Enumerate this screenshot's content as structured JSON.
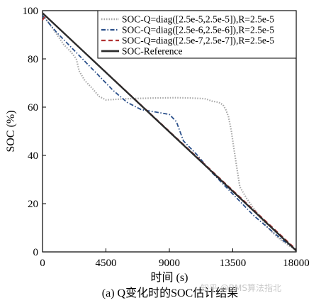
{
  "chart_data": {
    "type": "line",
    "title": "",
    "xlabel": "时间 (s)",
    "ylabel": "SOC (%)",
    "xlim": [
      0,
      18000
    ],
    "ylim": [
      0,
      100
    ],
    "xticks": [
      0,
      4500,
      9000,
      13500,
      18000
    ],
    "yticks": [
      0,
      20,
      40,
      60,
      80,
      100
    ],
    "legend_position": "top-right",
    "caption": "(a) Q变化时的SOC估计结果",
    "watermark": "知乎 @BMS算法指北",
    "series": [
      {
        "name": "SOC-Q=diag([2.5e-5,2.5e-5]),R=2.5e-5",
        "style": "dotted",
        "color": "#a6a6a6",
        "x": [
          0,
          300,
          800,
          1500,
          2000,
          2400,
          2600,
          3000,
          3500,
          4000,
          4500,
          6000,
          8000,
          9500,
          10500,
          11500,
          11800,
          12000,
          12500,
          12800,
          13000,
          13200,
          13400,
          13600,
          14000,
          14500,
          15000,
          15500,
          16000,
          16500,
          17000,
          17500,
          18000
        ],
        "y": [
          99,
          96,
          92,
          86,
          83,
          80,
          75,
          71,
          68,
          64.5,
          63,
          63.5,
          63.8,
          63.9,
          63.8,
          63.5,
          63,
          62.5,
          62,
          61,
          59,
          56,
          50,
          42,
          27,
          22,
          18,
          14,
          10,
          7,
          4.5,
          2.5,
          1
        ]
      },
      {
        "name": "SOC-Q=diag([2.5e-6,2.5e-6]),R=2.5e-5",
        "style": "dash-dot",
        "color": "#2a4f8a",
        "x": [
          0,
          1000,
          2000,
          3000,
          4000,
          5000,
          6000,
          7000,
          8000,
          9000,
          9500,
          10000,
          11000,
          12000,
          13000,
          14000,
          15000,
          16000,
          17000,
          18000
        ],
        "y": [
          98,
          91,
          85,
          79,
          73,
          67,
          62,
          59,
          58,
          57,
          54,
          46,
          40,
          33,
          27,
          21,
          15,
          10,
          5,
          1
        ]
      },
      {
        "name": "SOC-Q=diag([2.5e-7,2.5e-7]),R=2.5e-5",
        "style": "dashed",
        "color": "#b03030",
        "x": [
          0,
          200,
          1000,
          4500,
          9000,
          13500,
          18000
        ],
        "y": [
          96,
          98,
          93.5,
          74.5,
          50,
          25.5,
          1
        ]
      },
      {
        "name": "SOC-Reference",
        "style": "solid",
        "color": "#2b2b2b",
        "x": [
          0,
          18000
        ],
        "y": [
          99,
          0.5
        ]
      }
    ]
  }
}
